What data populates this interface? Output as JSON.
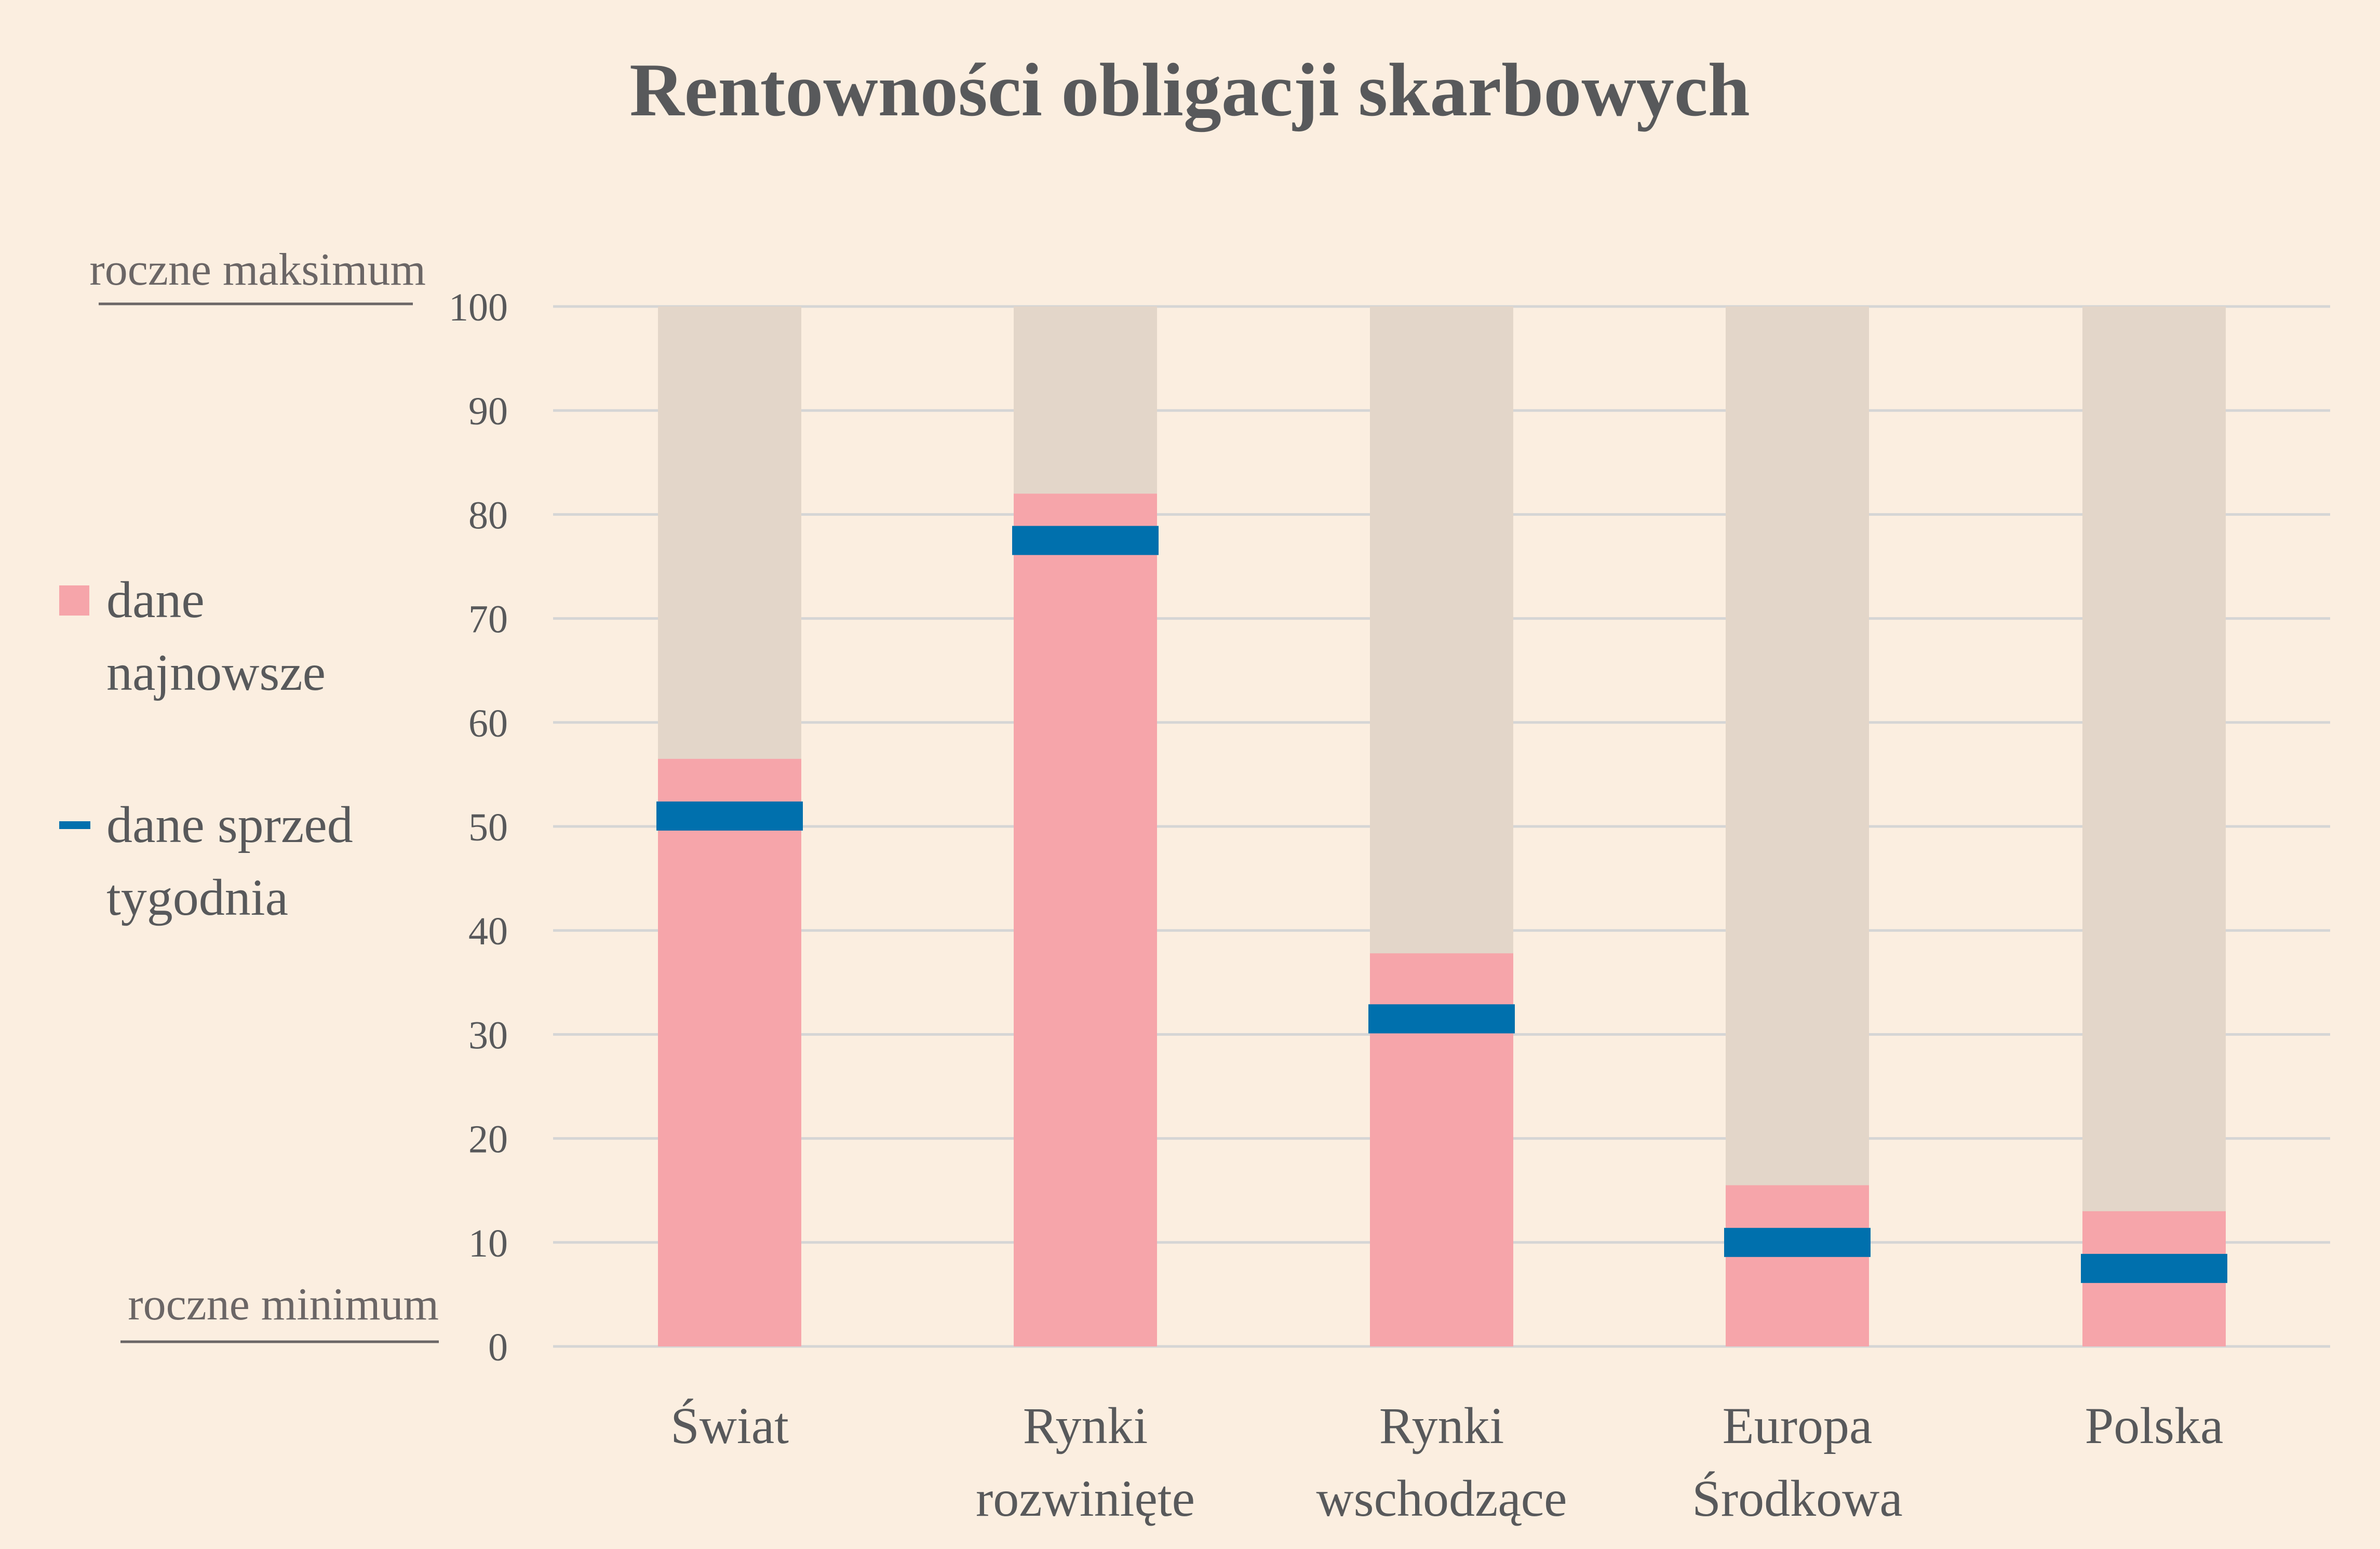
{
  "chart_data": {
    "type": "bar",
    "title": "Rentowności obligacji skarbowych",
    "categories": [
      [
        "Świat"
      ],
      [
        "Rynki",
        "rozwinięte"
      ],
      [
        "Rynki",
        "wschodzące"
      ],
      [
        "Europa",
        "Środkowa"
      ],
      [
        "Polska"
      ]
    ],
    "series": [
      {
        "name": "dane najnowsze",
        "values": [
          56.5,
          82,
          37.8,
          15.5,
          13
        ],
        "color": "#f6a5aa"
      },
      {
        "name": "dane sprzed tygodnia",
        "values": [
          51,
          77.5,
          31.5,
          10,
          7.5
        ],
        "color": "#0070ad"
      }
    ],
    "range_band": {
      "max": 100,
      "color": "#e3d6c9"
    },
    "ylim": [
      0,
      100
    ],
    "yticks": [
      0,
      10,
      20,
      30,
      40,
      50,
      60,
      70,
      80,
      90,
      100
    ],
    "grid": true,
    "axis_notes": {
      "top": "roczne maksimum",
      "bottom": "roczne minimum"
    },
    "legend": {
      "placement": "left",
      "items": [
        {
          "lines": [
            "dane",
            "najnowsze"
          ],
          "icon": "square-swatch-icon",
          "color": "#f6a5aa"
        },
        {
          "lines": [
            "dane sprzed",
            "tygodnia"
          ],
          "icon": "dash-swatch-icon",
          "color": "#0070ad"
        }
      ]
    }
  }
}
